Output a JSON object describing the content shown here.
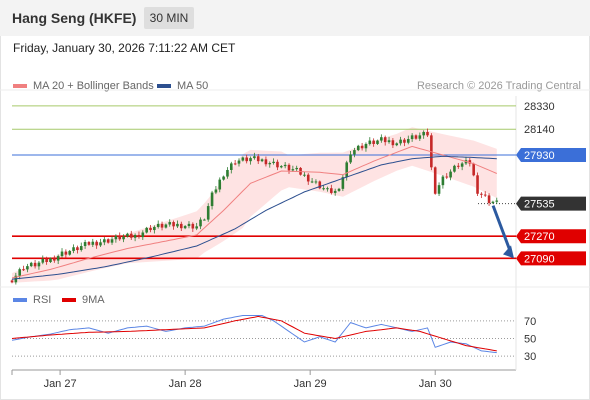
{
  "header": {
    "title": "Hang Seng (HKFE)",
    "interval": "30 MIN"
  },
  "timestamp": "Friday, January 30, 2026 7:11:22 AM CET",
  "legend": {
    "ma20_label": "MA 20 + Bollinger Bands",
    "ma50_label": "MA 50",
    "rsi_label": "RSI",
    "rsi_ma_label": "9MA",
    "credit": "Research © 2026 Trading Central"
  },
  "colors": {
    "ma20": "#f08080",
    "ma50": "#2c4f8f",
    "band_fill": "#fdd9d9",
    "up_candle": "#2e7d32",
    "down_candle": "#c62828",
    "support": "#e00000",
    "pivot": "#3b6fd8",
    "resistance": "#a6c96a",
    "last_price": "#333333",
    "rsi": "#5b86e5",
    "rsi_ma": "#e00000",
    "arrow": "#2c5aa0"
  },
  "chart_data": [
    {
      "type": "candlestick",
      "x_tick_labels": [
        "Jan 27",
        "Jan 28",
        "Jan 29",
        "Jan 30"
      ],
      "ylim": [
        26930,
        28410
      ],
      "close_path": [
        {
          "t": 0,
          "close": 26920
        },
        {
          "t": 3,
          "close": 27020
        },
        {
          "t": 6,
          "close": 27040
        },
        {
          "t": 10,
          "close": 27080
        },
        {
          "t": 13,
          "close": 27130
        },
        {
          "t": 16,
          "close": 27160
        },
        {
          "t": 20,
          "close": 27210
        },
        {
          "t": 24,
          "close": 27230
        },
        {
          "t": 28,
          "close": 27260
        },
        {
          "t": 32,
          "close": 27270
        },
        {
          "t": 36,
          "close": 27340
        },
        {
          "t": 40,
          "close": 27360
        },
        {
          "t": 44,
          "close": 27360
        },
        {
          "t": 48,
          "close": 27350
        },
        {
          "t": 50,
          "close": 27420
        },
        {
          "t": 52,
          "close": 27600
        },
        {
          "t": 55,
          "close": 27780
        },
        {
          "t": 58,
          "close": 27880
        },
        {
          "t": 62,
          "close": 27900
        },
        {
          "t": 66,
          "close": 27880
        },
        {
          "t": 70,
          "close": 27840
        },
        {
          "t": 74,
          "close": 27800
        },
        {
          "t": 78,
          "close": 27720
        },
        {
          "t": 82,
          "close": 27640
        },
        {
          "t": 85,
          "close": 27630
        },
        {
          "t": 86,
          "close": 27760
        },
        {
          "t": 88,
          "close": 27960
        },
        {
          "t": 92,
          "close": 28020
        },
        {
          "t": 96,
          "close": 28050
        },
        {
          "t": 100,
          "close": 28030
        },
        {
          "t": 104,
          "close": 28070
        },
        {
          "t": 108,
          "close": 28100
        },
        {
          "t": 109,
          "close": 27820
        },
        {
          "t": 110,
          "close": 27640
        },
        {
          "t": 112,
          "close": 27740
        },
        {
          "t": 116,
          "close": 27850
        },
        {
          "t": 119,
          "close": 27870
        },
        {
          "t": 121,
          "close": 27640
        },
        {
          "t": 124,
          "close": 27560
        },
        {
          "t": 126,
          "close": 27540
        }
      ],
      "ma20": [
        {
          "t": 0,
          "value": 26930
        },
        {
          "t": 10,
          "value": 27000
        },
        {
          "t": 20,
          "value": 27090
        },
        {
          "t": 30,
          "value": 27170
        },
        {
          "t": 40,
          "value": 27230
        },
        {
          "t": 48,
          "value": 27280
        },
        {
          "t": 55,
          "value": 27480
        },
        {
          "t": 62,
          "value": 27700
        },
        {
          "t": 70,
          "value": 27800
        },
        {
          "t": 80,
          "value": 27790
        },
        {
          "t": 86,
          "value": 27770
        },
        {
          "t": 94,
          "value": 27880
        },
        {
          "t": 104,
          "value": 28000
        },
        {
          "t": 112,
          "value": 27930
        },
        {
          "t": 120,
          "value": 27860
        },
        {
          "t": 126,
          "value": 27780
        }
      ],
      "ma50": [
        {
          "t": 0,
          "value": 26920
        },
        {
          "t": 12,
          "value": 26960
        },
        {
          "t": 24,
          "value": 27020
        },
        {
          "t": 36,
          "value": 27100
        },
        {
          "t": 48,
          "value": 27190
        },
        {
          "t": 58,
          "value": 27330
        },
        {
          "t": 66,
          "value": 27480
        },
        {
          "t": 76,
          "value": 27630
        },
        {
          "t": 86,
          "value": 27740
        },
        {
          "t": 96,
          "value": 27850
        },
        {
          "t": 104,
          "value": 27900
        },
        {
          "t": 112,
          "value": 27920
        },
        {
          "t": 120,
          "value": 27910
        },
        {
          "t": 126,
          "value": 27900
        }
      ],
      "bollinger_half_width": [
        {
          "t": 0,
          "value": 40
        },
        {
          "t": 12,
          "value": 100
        },
        {
          "t": 30,
          "value": 120
        },
        {
          "t": 50,
          "value": 200
        },
        {
          "t": 60,
          "value": 300
        },
        {
          "t": 72,
          "value": 130
        },
        {
          "t": 86,
          "value": 180
        },
        {
          "t": 100,
          "value": 150
        },
        {
          "t": 112,
          "value": 170
        },
        {
          "t": 126,
          "value": 200
        }
      ],
      "levels": [
        {
          "price": 28330,
          "label": "28330",
          "kind": "resistance"
        },
        {
          "price": 28140,
          "label": "28140",
          "kind": "resistance"
        },
        {
          "price": 27930,
          "label": "27930",
          "kind": "pivot"
        },
        {
          "price": 27535,
          "label": "27535",
          "kind": "last_price"
        },
        {
          "price": 27270,
          "label": "27270",
          "kind": "support"
        },
        {
          "price": 27090,
          "label": "27090",
          "kind": "support"
        }
      ],
      "forecast_arrow": {
        "from_price": 27535,
        "to_price": 27090
      }
    },
    {
      "type": "line",
      "indicator": "RSI",
      "ylim": [
        20,
        80
      ],
      "tick_labels": [
        "70",
        "50",
        "30"
      ],
      "rsi": [
        {
          "t": 0,
          "value": 48
        },
        {
          "t": 5,
          "value": 52
        },
        {
          "t": 10,
          "value": 55
        },
        {
          "t": 15,
          "value": 60
        },
        {
          "t": 20,
          "value": 62
        },
        {
          "t": 25,
          "value": 56
        },
        {
          "t": 30,
          "value": 62
        },
        {
          "t": 35,
          "value": 64
        },
        {
          "t": 40,
          "value": 58
        },
        {
          "t": 45,
          "value": 62
        },
        {
          "t": 50,
          "value": 64
        },
        {
          "t": 55,
          "value": 72
        },
        {
          "t": 60,
          "value": 76
        },
        {
          "t": 65,
          "value": 76
        },
        {
          "t": 68,
          "value": 70
        },
        {
          "t": 72,
          "value": 58
        },
        {
          "t": 76,
          "value": 46
        },
        {
          "t": 80,
          "value": 52
        },
        {
          "t": 84,
          "value": 46
        },
        {
          "t": 88,
          "value": 68
        },
        {
          "t": 92,
          "value": 62
        },
        {
          "t": 96,
          "value": 66
        },
        {
          "t": 100,
          "value": 62
        },
        {
          "t": 104,
          "value": 58
        },
        {
          "t": 108,
          "value": 62
        },
        {
          "t": 110,
          "value": 40
        },
        {
          "t": 114,
          "value": 46
        },
        {
          "t": 118,
          "value": 44
        },
        {
          "t": 122,
          "value": 36
        },
        {
          "t": 126,
          "value": 34
        }
      ],
      "rsi_ma": [
        {
          "t": 0,
          "value": 50
        },
        {
          "t": 10,
          "value": 54
        },
        {
          "t": 20,
          "value": 57
        },
        {
          "t": 30,
          "value": 58
        },
        {
          "t": 40,
          "value": 60
        },
        {
          "t": 50,
          "value": 62
        },
        {
          "t": 58,
          "value": 70
        },
        {
          "t": 64,
          "value": 75
        },
        {
          "t": 70,
          "value": 70
        },
        {
          "t": 76,
          "value": 56
        },
        {
          "t": 84,
          "value": 50
        },
        {
          "t": 92,
          "value": 58
        },
        {
          "t": 100,
          "value": 62
        },
        {
          "t": 106,
          "value": 58
        },
        {
          "t": 112,
          "value": 50
        },
        {
          "t": 118,
          "value": 42
        },
        {
          "t": 126,
          "value": 36
        }
      ]
    }
  ]
}
